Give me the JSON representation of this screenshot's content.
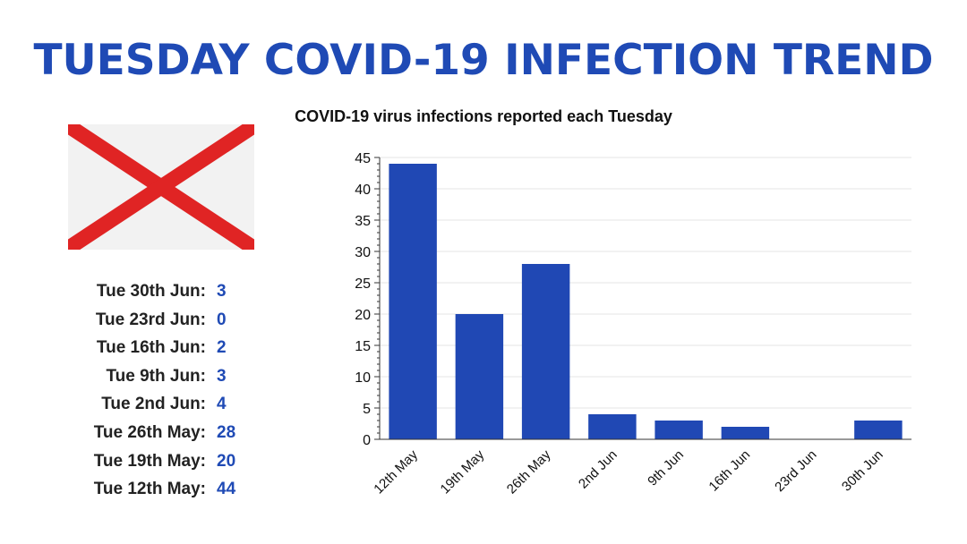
{
  "header": {
    "title": "TUESDAY COVID-19 INFECTION TREND"
  },
  "flag": {
    "icon": "alabama-flag-icon",
    "background": "#f2f2f2",
    "cross_color": "#e02424"
  },
  "stats": [
    {
      "label": "Tue 30th Jun:",
      "value": "3"
    },
    {
      "label": "Tue 23rd Jun:",
      "value": "0"
    },
    {
      "label": "Tue 16th Jun:",
      "value": "2"
    },
    {
      "label": "Tue 9th Jun:",
      "value": "3"
    },
    {
      "label": "Tue 2nd Jun:",
      "value": "4"
    },
    {
      "label": "Tue 26th May:",
      "value": "28"
    },
    {
      "label": "Tue 19th May:",
      "value": "20"
    },
    {
      "label": "Tue 12th May:",
      "value": "44"
    }
  ],
  "colors": {
    "accent": "#1f4ab5",
    "bar": "#2048b4"
  },
  "chart_data": {
    "type": "bar",
    "title": "COVID-19 virus infections reported each Tuesday",
    "categories": [
      "12th May",
      "19th May",
      "26th May",
      "2nd Jun",
      "9th Jun",
      "16th Jun",
      "23rd Jun",
      "30th Jun"
    ],
    "values": [
      44,
      20,
      28,
      4,
      3,
      2,
      0,
      3
    ],
    "xlabel": "",
    "ylabel": "",
    "ylim": [
      0,
      45
    ],
    "yticks": [
      0,
      5,
      10,
      15,
      20,
      25,
      30,
      35,
      40,
      45
    ],
    "grid": true
  }
}
